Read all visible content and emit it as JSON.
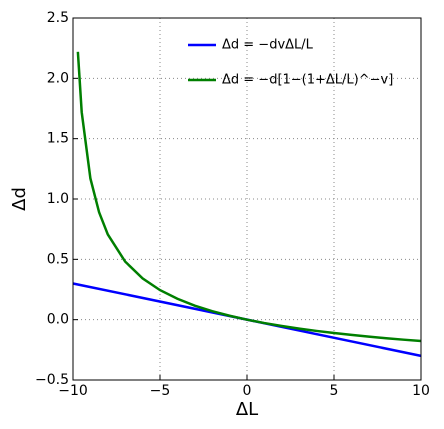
{
  "chart_data": {
    "type": "line",
    "xlabel": "ΔL",
    "ylabel": "Δd",
    "xlim": [
      -10,
      10
    ],
    "ylim": [
      -0.5,
      2.5
    ],
    "xticks": [
      {
        "value": -10,
        "label": "−10"
      },
      {
        "value": -5,
        "label": "−5"
      },
      0,
      5,
      10
    ],
    "yticks": [
      {
        "value": -0.5,
        "label": "−0.5"
      },
      {
        "value": 0,
        "label": "0.0"
      },
      {
        "value": 0.5,
        "label": "0.5"
      },
      {
        "value": 1,
        "label": "1.0"
      },
      {
        "value": 1.5,
        "label": "1.5"
      },
      {
        "value": 2,
        "label": "2.0"
      },
      {
        "value": 2.5,
        "label": "2.5"
      }
    ],
    "grid": true,
    "legend": "upper right",
    "series": [
      {
        "name": "Δd = −dvΔL/L",
        "color": "#0000ff",
        "x": [
          -10,
          10
        ],
        "values": [
          0.3,
          -0.3
        ]
      },
      {
        "name": "Δd = −d[1−(1+ΔL/L)^−v]",
        "color": "#007f00",
        "x": [
          -9.72,
          -9.5,
          -9,
          -8.5,
          -8,
          -7,
          -6,
          -5,
          -4,
          -3,
          -2,
          -1,
          0,
          1,
          2,
          3,
          4,
          5,
          6,
          7,
          8,
          9,
          10
        ],
        "values": [
          2.22,
          1.72,
          1.17,
          0.89,
          0.706,
          0.481,
          0.342,
          0.245,
          0.173,
          0.116,
          0.0706,
          0.0324,
          0,
          -0.028,
          -0.0524,
          -0.074,
          -0.0934,
          -0.1107,
          -0.1264,
          -0.1407,
          -0.1538,
          -0.1659,
          -0.177
        ]
      }
    ]
  }
}
